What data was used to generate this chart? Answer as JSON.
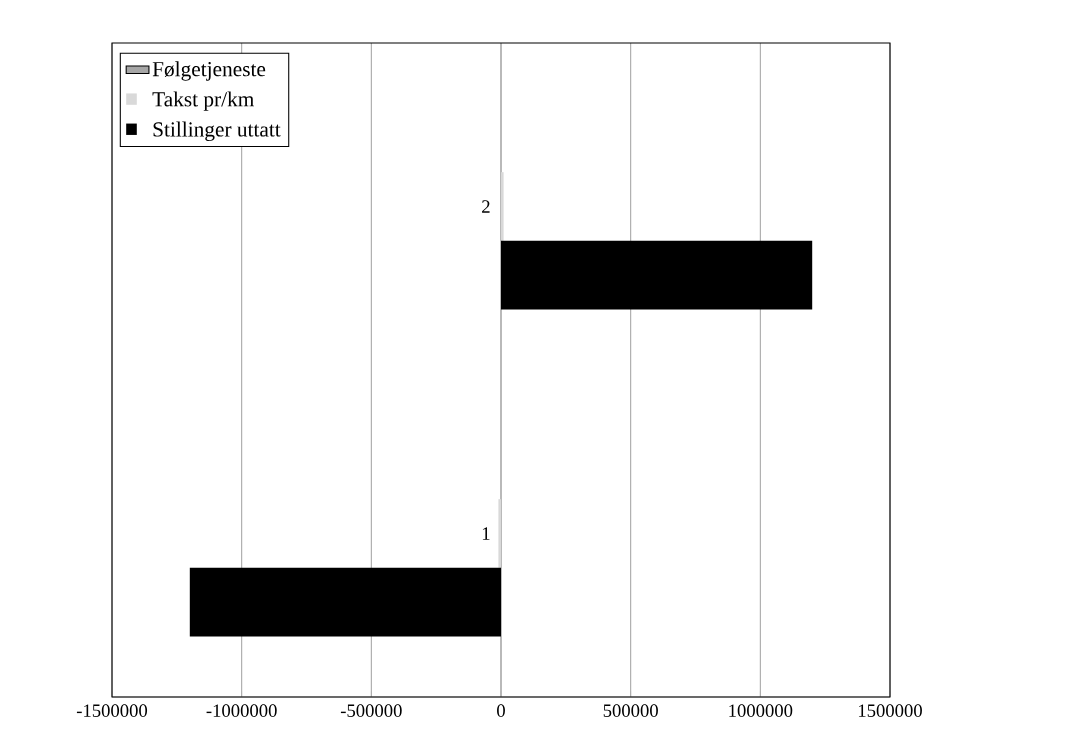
{
  "chart_data": {
    "type": "bar",
    "orientation": "horizontal",
    "categories": [
      "2",
      "1"
    ],
    "series": [
      {
        "name": "Følgetjeneste",
        "color": "#a6a6a6",
        "values": [
          null,
          null
        ]
      },
      {
        "name": "Takst pr/km",
        "color": "#d9d9d9",
        "values": [
          10000,
          -10000
        ]
      },
      {
        "name": "Stillinger uttatt",
        "color": "#000000",
        "values": [
          1200000,
          -1200000
        ]
      }
    ],
    "xlim": [
      -1500000,
      1500000
    ],
    "xticks": [
      -1500000,
      -1000000,
      -500000,
      0,
      500000,
      1000000,
      1500000
    ],
    "grid": "x",
    "legend": "top left"
  }
}
